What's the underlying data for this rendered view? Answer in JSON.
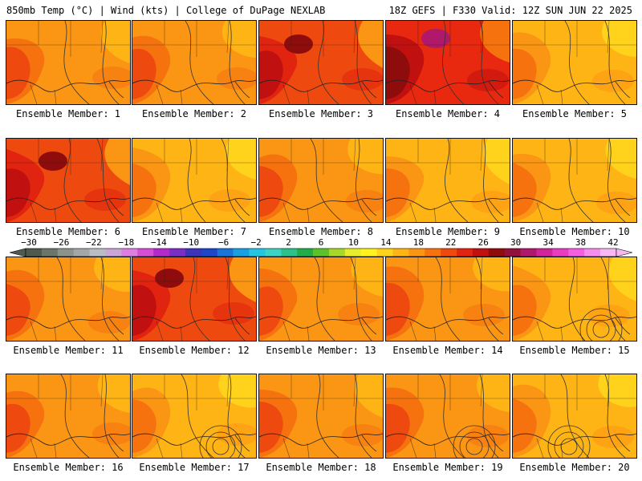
{
  "header": {
    "left": "850mb Temp (°C) | Wind (kts) | College of DuPage NEXLAB",
    "right": "18Z GEFS | F330 Valid: 12Z SUN JUN 22 2025"
  },
  "panels": [
    {
      "member": 1,
      "label": "Ensemble Member: 1",
      "palette": "warm-west"
    },
    {
      "member": 2,
      "label": "Ensemble Member: 2",
      "palette": "warm-west"
    },
    {
      "member": 3,
      "label": "Ensemble Member: 3",
      "palette": "hot"
    },
    {
      "member": 4,
      "label": "Ensemble Member: 4",
      "palette": "hottest"
    },
    {
      "member": 5,
      "label": "Ensemble Member: 5",
      "palette": "mild"
    },
    {
      "member": 6,
      "label": "Ensemble Member: 6",
      "palette": "hot"
    },
    {
      "member": 7,
      "label": "Ensemble Member: 7",
      "palette": "mild"
    },
    {
      "member": 8,
      "label": "Ensemble Member: 8",
      "palette": "warm-west"
    },
    {
      "member": 9,
      "label": "Ensemble Member: 9",
      "palette": "mild"
    },
    {
      "member": 10,
      "label": "Ensemble Member: 10",
      "palette": "mild"
    },
    {
      "member": 11,
      "label": "Ensemble Member: 11",
      "palette": "warm-west"
    },
    {
      "member": 12,
      "label": "Ensemble Member: 12",
      "palette": "hot"
    },
    {
      "member": 13,
      "label": "Ensemble Member: 13",
      "palette": "warm-west"
    },
    {
      "member": 14,
      "label": "Ensemble Member: 14",
      "palette": "warm-west"
    },
    {
      "member": 15,
      "label": "Ensemble Member: 15",
      "palette": "mild"
    },
    {
      "member": 16,
      "label": "Ensemble Member: 16",
      "palette": "warm-west"
    },
    {
      "member": 17,
      "label": "Ensemble Member: 17",
      "palette": "mild"
    },
    {
      "member": 18,
      "label": "Ensemble Member: 18",
      "palette": "warm-west"
    },
    {
      "member": 19,
      "label": "Ensemble Member: 19",
      "palette": "warm-west"
    },
    {
      "member": 20,
      "label": "Ensemble Member: 20",
      "palette": "mild"
    }
  ],
  "colorbar": {
    "ticks": [
      "−30",
      "−26",
      "−22",
      "−18",
      "−14",
      "−10",
      "−6",
      "−2",
      "2",
      "6",
      "10",
      "14",
      "18",
      "22",
      "26",
      "30",
      "34",
      "38",
      "42"
    ],
    "colors": [
      "#4f5a4f",
      "#6b766b",
      "#8a948a",
      "#a3a7a8",
      "#b9bcc3",
      "#c9a6d6",
      "#dc7fe0",
      "#d54fd4",
      "#b22bc9",
      "#7a2ec4",
      "#3c33b9",
      "#1d46c8",
      "#1a74d8",
      "#1aa0e0",
      "#26c4e0",
      "#3cd2c4",
      "#2cc08a",
      "#22ab4a",
      "#5cc22a",
      "#a6d82c",
      "#e6ec2a",
      "#fff21e",
      "#ffd21c",
      "#ffb416",
      "#fb9514",
      "#f5720f",
      "#ee4a0f",
      "#e0240f",
      "#c01010",
      "#8e0c0c",
      "#92103c",
      "#b0186a",
      "#d0249a",
      "#e83cc2",
      "#f45ee0",
      "#f68cec",
      "#f7b8f2"
    ]
  }
}
